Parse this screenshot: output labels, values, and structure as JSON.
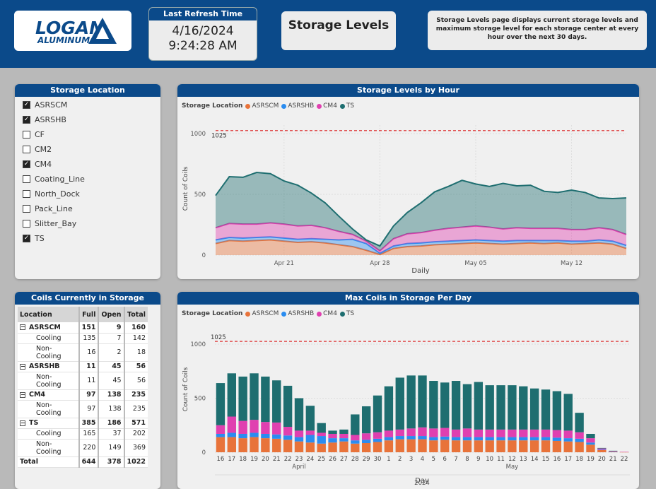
{
  "header": {
    "logo_text": "LOGAN",
    "logo_sub": "ALUMINUM",
    "refresh_title": "Last Refresh Time",
    "refresh_date": "4/16/2024",
    "refresh_time": "9:24:28 AM",
    "page_title": "Storage Levels",
    "description": "Storage Levels page displays current storage levels and maximum storage level for each storage center at every hour over the next 30 days.",
    "colors": {
      "header_bg": "#0b4a8a"
    }
  },
  "slicer": {
    "title": "Storage Location",
    "items": [
      {
        "label": "ASRSCM",
        "checked": true
      },
      {
        "label": "ASRSHB",
        "checked": true
      },
      {
        "label": "CF",
        "checked": false
      },
      {
        "label": "CM2",
        "checked": false
      },
      {
        "label": "CM4",
        "checked": true
      },
      {
        "label": "Coating_Line",
        "checked": false
      },
      {
        "label": "North_Dock",
        "checked": false
      },
      {
        "label": "Pack_Line",
        "checked": false
      },
      {
        "label": "Slitter_Bay",
        "checked": false
      },
      {
        "label": "TS",
        "checked": true
      }
    ]
  },
  "coils_table": {
    "title": "Coils Currently in Storage",
    "columns": [
      "Location",
      "Full",
      "Open",
      "Total"
    ],
    "rows": [
      {
        "location": "ASRSCM",
        "full": "151",
        "open": "9",
        "total": "160",
        "level": 0
      },
      {
        "location": "Cooling",
        "full": "135",
        "open": "7",
        "total": "142",
        "level": 1
      },
      {
        "location": "Non-Cooling",
        "full": "16",
        "open": "2",
        "total": "18",
        "level": 1
      },
      {
        "location": "ASRSHB",
        "full": "11",
        "open": "45",
        "total": "56",
        "level": 0
      },
      {
        "location": "Non-Cooling",
        "full": "11",
        "open": "45",
        "total": "56",
        "level": 1
      },
      {
        "location": "CM4",
        "full": "97",
        "open": "138",
        "total": "235",
        "level": 0
      },
      {
        "location": "Non-Cooling",
        "full": "97",
        "open": "138",
        "total": "235",
        "level": 1
      },
      {
        "location": "TS",
        "full": "385",
        "open": "186",
        "total": "571",
        "level": 0
      },
      {
        "location": "Cooling",
        "full": "165",
        "open": "37",
        "total": "202",
        "level": 1
      },
      {
        "location": "Non-Cooling",
        "full": "220",
        "open": "149",
        "total": "369",
        "level": 1
      }
    ],
    "total_row": {
      "location": "Total",
      "full": "644",
      "open": "378",
      "total": "1022"
    }
  },
  "chart_data": [
    {
      "type": "area",
      "title": "Storage Levels by Hour",
      "xlabel": "Daily",
      "ylabel": "Count of Coils",
      "legend_title": "Storage Location",
      "legend_position": "top-left",
      "x_ticks": [
        "Apr 21",
        "Apr 28",
        "May 05",
        "May 12"
      ],
      "x_tick_days": [
        5,
        12,
        19,
        26
      ],
      "x_range_days": [
        0,
        30
      ],
      "y_ticks": [
        "0",
        "500",
        "1000"
      ],
      "ylim": [
        0,
        1000
      ],
      "reference_line": {
        "value": 1025,
        "label": "1025"
      },
      "stacked": true,
      "x_days": [
        0,
        1,
        2,
        3,
        4,
        5,
        6,
        7,
        8,
        9,
        10,
        11,
        12,
        13,
        14,
        15,
        16,
        17,
        18,
        19,
        20,
        21,
        22,
        23,
        24,
        25,
        26,
        27,
        28,
        29,
        30
      ],
      "series": [
        {
          "name": "ASRSCM",
          "color": "#e8733a",
          "values": [
            95,
            120,
            115,
            120,
            125,
            115,
            105,
            110,
            100,
            85,
            70,
            40,
            5,
            55,
            70,
            75,
            85,
            90,
            95,
            100,
            95,
            90,
            95,
            100,
            95,
            100,
            90,
            95,
            100,
            90,
            55
          ]
        },
        {
          "name": "ASRSHB",
          "color": "#2a8cf0",
          "values": [
            30,
            25,
            25,
            25,
            25,
            25,
            25,
            25,
            30,
            40,
            60,
            55,
            10,
            20,
            25,
            25,
            25,
            25,
            25,
            25,
            25,
            25,
            25,
            20,
            25,
            20,
            25,
            20,
            25,
            25,
            25
          ]
        },
        {
          "name": "CM4",
          "color": "#e040b0",
          "values": [
            100,
            115,
            115,
            110,
            115,
            115,
            110,
            110,
            95,
            70,
            40,
            20,
            20,
            60,
            80,
            85,
            95,
            105,
            110,
            115,
            110,
            100,
            105,
            100,
            100,
            100,
            95,
            95,
            100,
            95,
            90
          ]
        },
        {
          "name": "TS",
          "color": "#1e6e70",
          "values": [
            265,
            385,
            385,
            425,
            405,
            355,
            335,
            265,
            205,
            125,
            45,
            10,
            40,
            105,
            175,
            245,
            315,
            345,
            385,
            345,
            335,
            375,
            345,
            355,
            305,
            295,
            325,
            305,
            245,
            255,
            300
          ]
        }
      ]
    },
    {
      "type": "bar",
      "title": "Max Coils in Storage Per Day",
      "xlabel": "Day",
      "ylabel": "Count of Coils",
      "legend_title": "Storage Location",
      "legend_position": "top-left",
      "y_ticks": [
        "0",
        "500",
        "1000"
      ],
      "ylim": [
        0,
        1000
      ],
      "reference_line": {
        "value": 1025,
        "label": "1025"
      },
      "stacked": true,
      "categories": [
        "16",
        "17",
        "18",
        "19",
        "20",
        "21",
        "22",
        "23",
        "24",
        "25",
        "26",
        "27",
        "28",
        "29",
        "30",
        "1",
        "2",
        "3",
        "4",
        "5",
        "6",
        "7",
        "8",
        "9",
        "10",
        "11",
        "12",
        "13",
        "14",
        "15",
        "16",
        "17",
        "18",
        "19",
        "20",
        "21",
        "22"
      ],
      "month_labels": [
        {
          "label": "April",
          "index": 7
        },
        {
          "label": "May",
          "index": 26
        }
      ],
      "year_label": "2024",
      "series": [
        {
          "name": "ASRSCM",
          "color": "#e8733a",
          "values": [
            140,
            140,
            130,
            140,
            130,
            125,
            115,
            100,
            90,
            80,
            90,
            100,
            80,
            85,
            95,
            110,
            120,
            120,
            120,
            110,
            115,
            110,
            110,
            110,
            110,
            110,
            110,
            110,
            110,
            110,
            105,
            100,
            95,
            70,
            20,
            5,
            2
          ]
        },
        {
          "name": "ASRSHB",
          "color": "#2a8cf0",
          "values": [
            30,
            40,
            40,
            40,
            40,
            40,
            40,
            40,
            70,
            70,
            40,
            30,
            30,
            30,
            30,
            30,
            30,
            30,
            30,
            30,
            30,
            30,
            30,
            30,
            30,
            30,
            30,
            30,
            30,
            30,
            30,
            30,
            30,
            20,
            5,
            2,
            0
          ]
        },
        {
          "name": "CM4",
          "color": "#e040b0",
          "values": [
            80,
            150,
            120,
            120,
            110,
            110,
            80,
            60,
            40,
            30,
            40,
            40,
            50,
            60,
            60,
            60,
            60,
            70,
            80,
            80,
            80,
            70,
            80,
            70,
            70,
            70,
            70,
            70,
            70,
            70,
            70,
            70,
            60,
            40,
            10,
            5,
            2
          ]
        },
        {
          "name": "TS",
          "color": "#1e6e70",
          "values": [
            390,
            400,
            410,
            430,
            420,
            390,
            380,
            300,
            230,
            90,
            30,
            40,
            190,
            250,
            340,
            410,
            480,
            490,
            480,
            440,
            420,
            450,
            410,
            440,
            410,
            410,
            410,
            400,
            380,
            370,
            360,
            340,
            180,
            40,
            5,
            2,
            0
          ]
        }
      ]
    }
  ]
}
